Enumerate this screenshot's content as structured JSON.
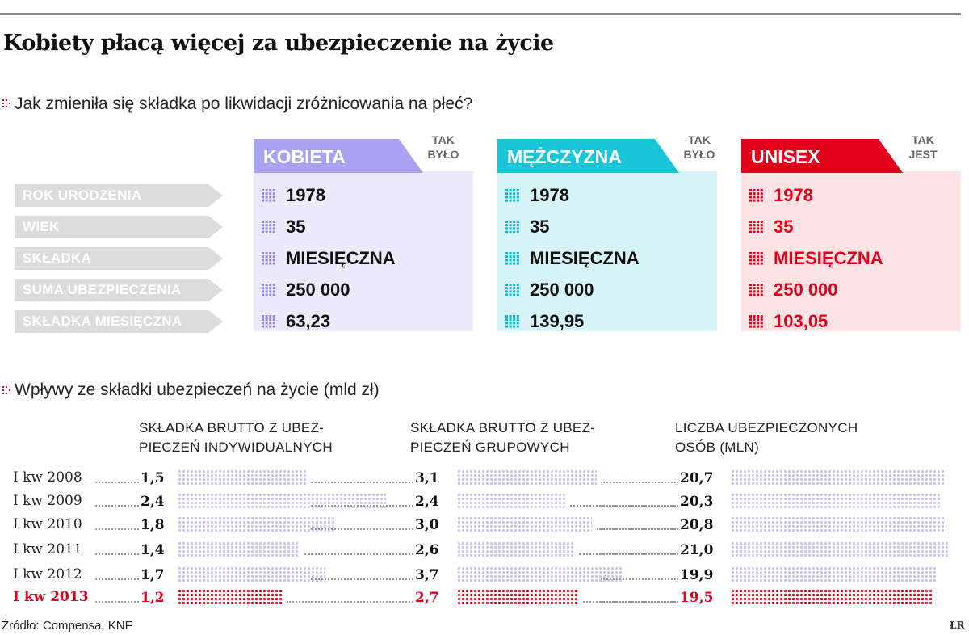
{
  "title": "Kobiety płacą więcej za ubezpieczenie na życie",
  "section1": {
    "title": "Jak zmieniła się składka po likwidacji zróżnicowania na płeć?",
    "row_labels": [
      "ROK URODZENIA",
      "WIEK",
      "SKŁADKA",
      "SUMA UBEZPIECZENIA",
      "SKŁADKA MIESIĘCZNA"
    ],
    "panels": [
      {
        "header": "KOBIETA",
        "tag_line1": "TAK",
        "tag_line2": "BYŁO",
        "accent": "#a9a2f0",
        "body_color": "#eceafa",
        "text_color": "#111111",
        "values": [
          "1978",
          "35",
          "MIESIĘCZNA",
          "250 000",
          "63,23"
        ]
      },
      {
        "header": "MĘŻCZYZNA",
        "tag_line1": "TAK",
        "tag_line2": "BYŁO",
        "accent": "#19c6d8",
        "body_color": "#d6f4f7",
        "text_color": "#111111",
        "values": [
          "1978",
          "35",
          "MIESIĘCZNA",
          "250 000",
          "139,95"
        ]
      },
      {
        "header": "UNISEX",
        "tag_line1": "TAK",
        "tag_line2": "JEST",
        "accent": "#e3001b",
        "body_color": "#fde3e3",
        "text_color": "#e3001b",
        "values": [
          "1978",
          "35",
          "MIESIĘCZNA",
          "250 000",
          "103,05"
        ]
      }
    ]
  },
  "section2": {
    "title": "Wpływy ze składki ubezpieczeń na życie (mld zł)"
  },
  "chart_data": {
    "type": "bar",
    "title": "Wpływy ze składki ubezpieczeń na życie (mld zł)",
    "categories": [
      "I kw 2008",
      "I kw 2009",
      "I kw 2010",
      "I kw 2011",
      "I kw 2012",
      "I kw 2013"
    ],
    "highlight_category": "I kw 2013",
    "series": [
      {
        "name_line1": "SKŁADKA BRUTTO Z UBEZ-",
        "name_line2": "PIECZEŃ INDYWIDUALNYCH",
        "values": [
          1.5,
          2.4,
          1.8,
          1.4,
          1.7,
          1.2
        ],
        "labels": [
          "1,5",
          "2,4",
          "1,8",
          "1,4",
          "1,7",
          "1,2"
        ]
      },
      {
        "name_line1": "SKŁADKA BRUTTO Z UBEZ-",
        "name_line2": "PIECZEŃ GRUPOWYCH",
        "values": [
          3.1,
          2.4,
          3.0,
          2.6,
          3.7,
          2.7
        ],
        "labels": [
          "3,1",
          "2,4",
          "3,0",
          "2,6",
          "3,7",
          "2,7"
        ]
      },
      {
        "name_line1": "LICZBA UBEZPIECZONYCH",
        "name_line2": "OSÓB (MLN)",
        "values": [
          20.7,
          20.3,
          20.8,
          21.0,
          19.9,
          19.5
        ],
        "labels": [
          "20,7",
          "20,3",
          "20,8",
          "21,0",
          "19,9",
          "19,5"
        ]
      }
    ]
  },
  "colors": {
    "bar": "#c9c6f2",
    "highlight": "#e3001b",
    "grid_kobieta": "#8f86e6",
    "grid_mezczyzna": "#10b5c9",
    "grid_unisex": "#e3001b"
  },
  "source": "Źródło: Compensa, KNF",
  "logo": "ŁR"
}
